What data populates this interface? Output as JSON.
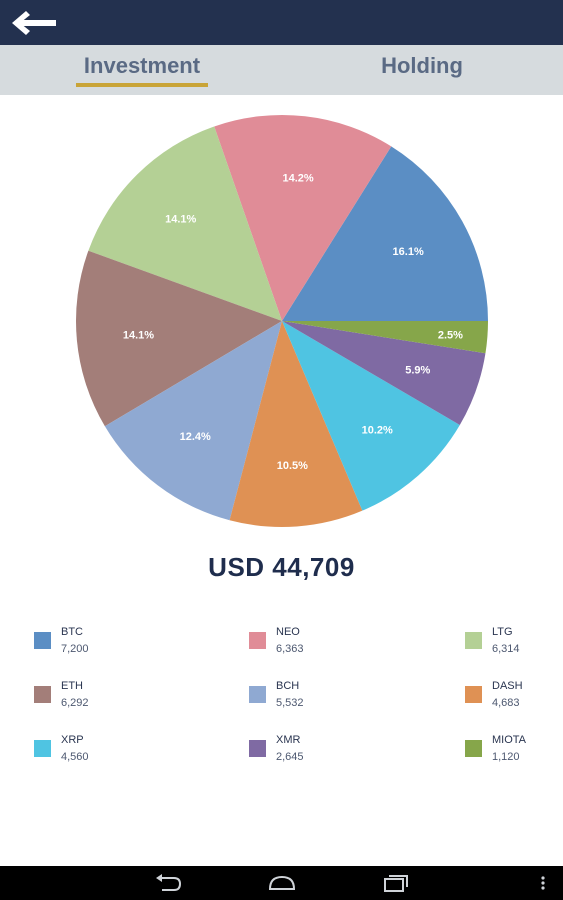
{
  "header": {
    "back_icon": "arrow-left-icon"
  },
  "tabs": [
    {
      "label": "Investment",
      "active": true
    },
    {
      "label": "Holding",
      "active": false
    }
  ],
  "chart_data": {
    "type": "pie",
    "categories": [
      "BTC",
      "NEO",
      "LTG",
      "ETH",
      "BCH",
      "DASH",
      "XRP",
      "XMR",
      "MIOTA"
    ],
    "values": [
      7200,
      6363,
      6314,
      6292,
      5532,
      4683,
      4560,
      2645,
      1120
    ],
    "labels": [
      "16.1%",
      "14.2%",
      "14.1%",
      "14.1%",
      "12.4%",
      "10.5%",
      "10.2%",
      "5.9%",
      "2.5%"
    ],
    "colors": [
      "#5b8ec4",
      "#e08c97",
      "#b4d095",
      "#a37e79",
      "#8fa9d2",
      "#df9154",
      "#4fc4e2",
      "#7f6aa3",
      "#86a64a"
    ],
    "start": "3 o'clock, counter-clockwise"
  },
  "total": "USD 44,709",
  "legend": [
    {
      "name": "BTC",
      "value": "7,200"
    },
    {
      "name": "NEO",
      "value": "6,363"
    },
    {
      "name": "LTG",
      "value": "6,314"
    },
    {
      "name": "ETH",
      "value": "6,292"
    },
    {
      "name": "BCH",
      "value": "5,532"
    },
    {
      "name": "DASH",
      "value": "4,683"
    },
    {
      "name": "XRP",
      "value": "4,560"
    },
    {
      "name": "XMR",
      "value": "2,645"
    },
    {
      "name": "MIOTA",
      "value": "1,120"
    }
  ],
  "navbar": {
    "icons": [
      "back-icon",
      "home-icon",
      "recents-icon",
      "menu-icon"
    ]
  }
}
